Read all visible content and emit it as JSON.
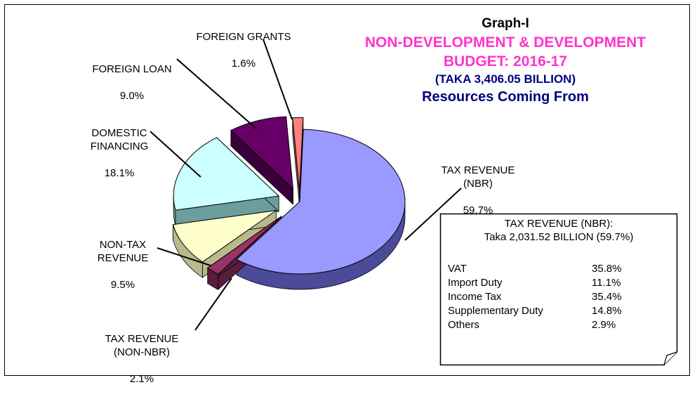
{
  "chart_data": {
    "type": "pie",
    "title": "Graph-I",
    "subtitle_line1": "NON-DEVELOPMENT & DEVELOPMENT",
    "subtitle_line2": "BUDGET: 2016-17",
    "subtitle_line3": "(TAKA 3,406.05 BILLION)",
    "subtitle_line4": "Resources Coming From",
    "slices": [
      {
        "name": "TAX REVENUE\n(NBR)",
        "pct_label": "59.7%",
        "value": 59.7,
        "color": "#9999ff",
        "side_color": "#4b4b9a"
      },
      {
        "name": "TAX REVENUE\n(NON-NBR)",
        "pct_label": "2.1%",
        "value": 2.1,
        "color": "#993366",
        "side_color": "#5a1d3c"
      },
      {
        "name": "NON-TAX\nREVENUE",
        "pct_label": "9.5%",
        "value": 9.5,
        "color": "#ffffcc",
        "side_color": "#b9b98c"
      },
      {
        "name": "DOMESTIC\nFINANCING",
        "pct_label": "18.1%",
        "value": 18.1,
        "color": "#ccffff",
        "side_color": "#6c9e9e"
      },
      {
        "name": "FOREIGN  LOAN",
        "pct_label": "9.0%",
        "value": 9.0,
        "color": "#660066",
        "side_color": "#3a003a"
      },
      {
        "name": "FOREIGN  GRANTS",
        "pct_label": "1.6%",
        "value": 1.6,
        "color": "#ff8080",
        "side_color": "#a34c4c"
      }
    ],
    "breakdown": {
      "header_line1": "TAX REVENUE (NBR):",
      "header_line2": "Taka  2,031.52 BILLION  (59.7%)",
      "items": [
        {
          "name": "VAT",
          "value": "35.8%"
        },
        {
          "name": "Import Duty",
          "value": "11.1%"
        },
        {
          "name": "Income Tax",
          "value": "35.4%"
        },
        {
          "name": "Supplementary Duty",
          "value": "14.8%"
        },
        {
          "name": "Others",
          "value": "2.9%"
        }
      ]
    }
  }
}
